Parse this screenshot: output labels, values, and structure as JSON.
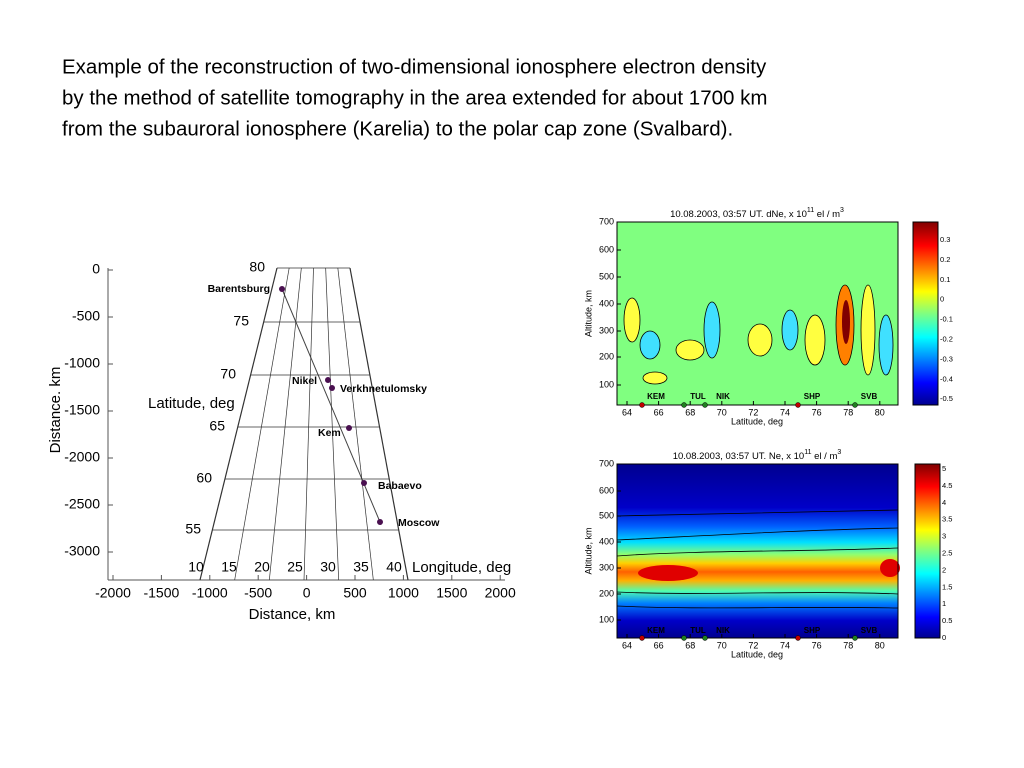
{
  "caption": [
    "Example of the reconstruction of two-dimensional ionosphere electron density",
    "by the method of satellite tomography in the area extended for about 1700 km",
    "from the subauroral ionosphere (Karelia) to the polar cap zone (Svalbard)."
  ],
  "map": {
    "y_label": "Distance. km",
    "x_label": "Distance, km",
    "y_ticks": [
      "0",
      "-500",
      "-1000",
      "-1500",
      "-2000",
      "-2500",
      "-3000"
    ],
    "x_ticks": [
      "-2000",
      "-1500",
      "-1000",
      "-500",
      "0",
      "500",
      "1000",
      "1500",
      "2000"
    ],
    "latitude_label": "Latitude, deg",
    "longitude_label": "Longitude, deg",
    "latitudes": [
      "80",
      "75",
      "70",
      "65",
      "60",
      "55"
    ],
    "longitudes": [
      "10",
      "15",
      "20",
      "25",
      "30",
      "35",
      "40"
    ],
    "stations": [
      "Barentsburg",
      "Nikel",
      "Verkhnetulomsky",
      "Kem",
      "Babaevo",
      "Moscow"
    ]
  },
  "plots": [
    {
      "title": [
        "10.08.2003, 03:57 UT.   dNe,  x 10",
        "11",
        " el / m",
        "3"
      ],
      "y_label": "Altitude, km",
      "x_label": "Latitude, deg",
      "y_ticks": [
        "700",
        "600",
        "500",
        "400",
        "300",
        "200",
        "100"
      ],
      "x_ticks": [
        "64",
        "66",
        "68",
        "70",
        "72",
        "74",
        "76",
        "78",
        "80"
      ],
      "colorbar_ticks": [
        "0.3",
        "0.2",
        "0.1",
        "0",
        "-0.1",
        "-0.2",
        "-0.3",
        "-0.4",
        "-0.5"
      ],
      "stations": [
        "KEM",
        "TUL",
        "NIK",
        "SHP",
        "SVB"
      ]
    },
    {
      "title": [
        "10.08.2003, 03:57 UT.   Ne,  x 10",
        "11",
        " el / m",
        "3"
      ],
      "y_label": "Altitude, km",
      "x_label": "Latitude, deg",
      "y_ticks": [
        "700",
        "600",
        "500",
        "400",
        "300",
        "200",
        "100"
      ],
      "x_ticks": [
        "64",
        "66",
        "68",
        "70",
        "72",
        "74",
        "76",
        "78",
        "80"
      ],
      "colorbar_ticks": [
        "5",
        "4.5",
        "4",
        "3.5",
        "3",
        "2.5",
        "2",
        "1.5",
        "1",
        "0.5",
        "0"
      ],
      "stations": [
        "KEM",
        "TUL",
        "NIK",
        "SHP",
        "SVB"
      ]
    }
  ]
}
